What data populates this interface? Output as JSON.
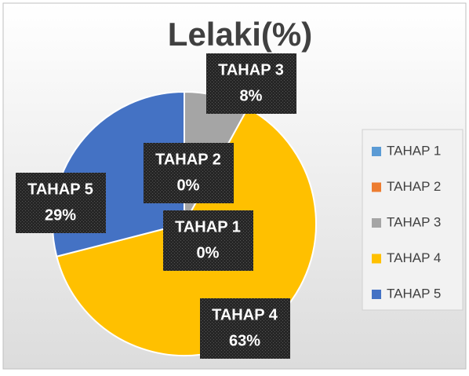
{
  "chart_data": {
    "type": "pie",
    "title": "Lelaki(%)",
    "categories": [
      "TAHAP 1",
      "TAHAP 2",
      "TAHAP 3",
      "TAHAP 4",
      "TAHAP 5"
    ],
    "values": [
      0,
      0,
      8,
      63,
      29
    ],
    "value_labels": [
      "0%",
      "0%",
      "8%",
      "63%",
      "29%"
    ],
    "colors": [
      "#5b9bd5",
      "#ed7d31",
      "#a5a5a5",
      "#ffc000",
      "#4472c4"
    ],
    "legend": "right"
  }
}
